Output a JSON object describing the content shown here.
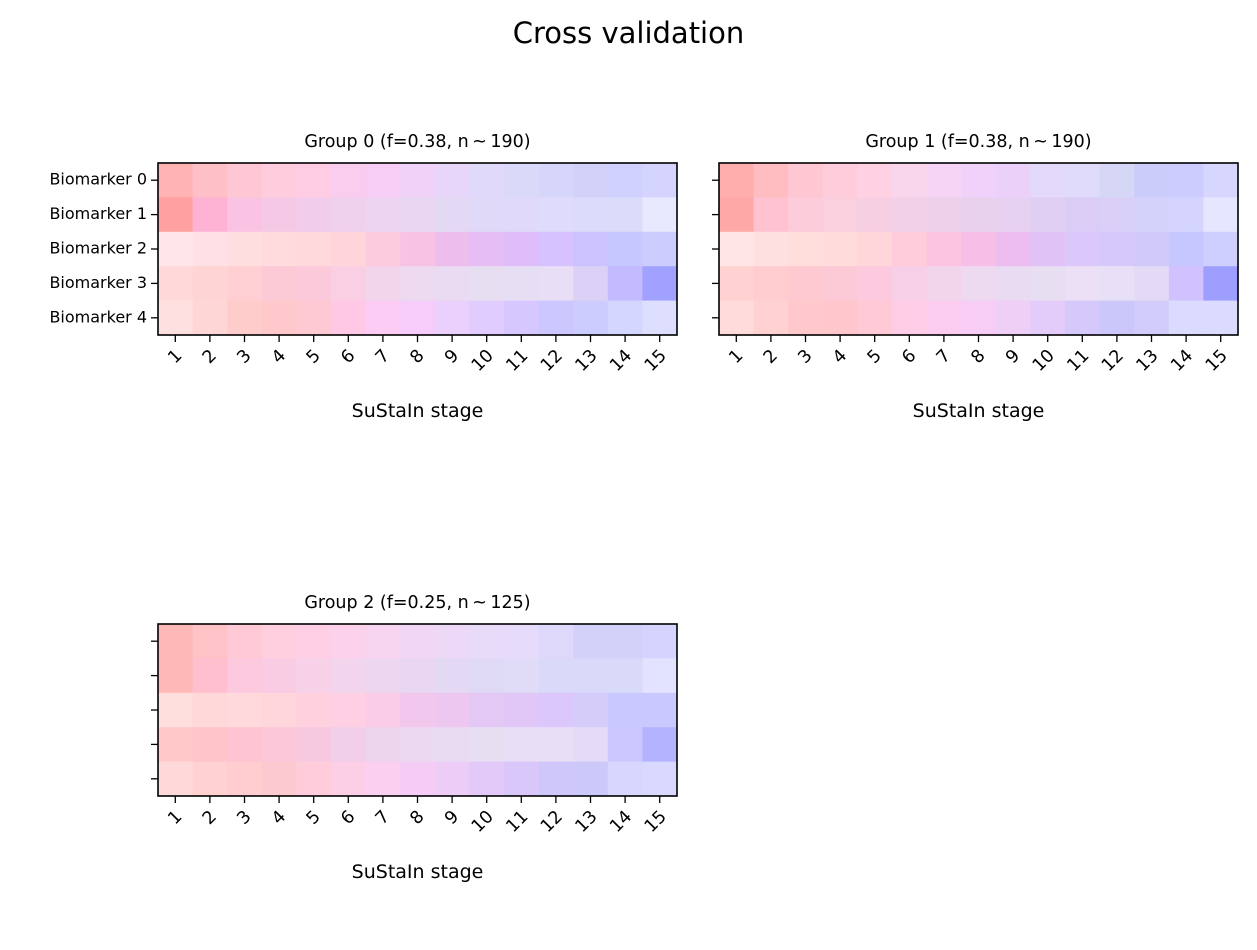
{
  "figure": {
    "title": "Cross validation"
  },
  "chart_data": [
    {
      "type": "heatmap",
      "title": "Group 0 (f=0.38, n ~ 190)",
      "xlabel": "SuStaIn stage",
      "ylabel": "",
      "x_ticks": [
        "1",
        "2",
        "3",
        "4",
        "5",
        "6",
        "7",
        "8",
        "9",
        "10",
        "11",
        "12",
        "13",
        "14",
        "15"
      ],
      "y_ticks": [
        "Biomarker 0",
        "Biomarker 1",
        "Biomarker 2",
        "Biomarker 3",
        "Biomarker 4"
      ],
      "show_y_labels": true,
      "rows": [
        [
          [
            1.0,
            0.7,
            0.7
          ],
          [
            1.0,
            0.75,
            0.78
          ],
          [
            1.0,
            0.78,
            0.83
          ],
          [
            1.0,
            0.8,
            0.87
          ],
          [
            1.0,
            0.8,
            0.89
          ],
          [
            0.98,
            0.8,
            0.93
          ],
          [
            0.97,
            0.8,
            0.96
          ],
          [
            0.94,
            0.82,
            0.97
          ],
          [
            0.91,
            0.84,
            0.98
          ],
          [
            0.88,
            0.85,
            0.98
          ],
          [
            0.86,
            0.85,
            0.98
          ],
          [
            0.84,
            0.84,
            0.98
          ],
          [
            0.82,
            0.82,
            0.98
          ],
          [
            0.82,
            0.82,
            1.0
          ],
          [
            0.83,
            0.83,
            1.0
          ]
        ],
        [
          [
            1.0,
            0.63,
            0.63
          ],
          [
            1.0,
            0.7,
            0.83
          ],
          [
            0.98,
            0.76,
            0.89
          ],
          [
            0.96,
            0.79,
            0.9
          ],
          [
            0.95,
            0.8,
            0.92
          ],
          [
            0.94,
            0.82,
            0.93
          ],
          [
            0.93,
            0.83,
            0.94
          ],
          [
            0.91,
            0.84,
            0.95
          ],
          [
            0.89,
            0.85,
            0.96
          ],
          [
            0.88,
            0.85,
            0.97
          ],
          [
            0.88,
            0.85,
            0.98
          ],
          [
            0.87,
            0.86,
            0.99
          ],
          [
            0.86,
            0.86,
            0.99
          ],
          [
            0.86,
            0.86,
            0.98
          ],
          [
            0.91,
            0.91,
            1.0
          ]
        ],
        [
          [
            1.0,
            0.9,
            0.91
          ],
          [
            1.0,
            0.88,
            0.9
          ],
          [
            1.0,
            0.87,
            0.88
          ],
          [
            1.0,
            0.86,
            0.87
          ],
          [
            1.0,
            0.85,
            0.86
          ],
          [
            1.0,
            0.83,
            0.86
          ],
          [
            0.99,
            0.8,
            0.87
          ],
          [
            0.97,
            0.76,
            0.89
          ],
          [
            0.93,
            0.74,
            0.93
          ],
          [
            0.9,
            0.74,
            0.96
          ],
          [
            0.87,
            0.74,
            0.98
          ],
          [
            0.84,
            0.76,
            1.0
          ],
          [
            0.8,
            0.76,
            1.0
          ],
          [
            0.78,
            0.78,
            1.0
          ],
          [
            0.8,
            0.8,
            1.0
          ]
        ],
        [
          [
            1.0,
            0.85,
            0.85
          ],
          [
            1.0,
            0.83,
            0.83
          ],
          [
            1.0,
            0.81,
            0.83
          ],
          [
            0.99,
            0.79,
            0.84
          ],
          [
            0.99,
            0.79,
            0.86
          ],
          [
            0.98,
            0.81,
            0.89
          ],
          [
            0.95,
            0.83,
            0.92
          ],
          [
            0.93,
            0.85,
            0.94
          ],
          [
            0.92,
            0.86,
            0.95
          ],
          [
            0.91,
            0.87,
            0.95
          ],
          [
            0.9,
            0.87,
            0.95
          ],
          [
            0.91,
            0.87,
            0.96
          ],
          [
            0.86,
            0.82,
            0.97
          ],
          [
            0.77,
            0.73,
            1.0
          ],
          [
            0.63,
            0.63,
            1.0
          ]
        ],
        [
          [
            1.0,
            0.88,
            0.88
          ],
          [
            1.0,
            0.84,
            0.84
          ],
          [
            1.0,
            0.8,
            0.8
          ],
          [
            1.0,
            0.79,
            0.8
          ],
          [
            1.0,
            0.79,
            0.83
          ],
          [
            1.0,
            0.79,
            0.9
          ],
          [
            0.99,
            0.8,
            0.96
          ],
          [
            0.96,
            0.8,
            0.98
          ],
          [
            0.92,
            0.81,
            0.99
          ],
          [
            0.88,
            0.8,
            1.0
          ],
          [
            0.84,
            0.78,
            1.0
          ],
          [
            0.8,
            0.78,
            1.0
          ],
          [
            0.8,
            0.8,
            1.0
          ],
          [
            0.83,
            0.84,
            1.0
          ],
          [
            0.87,
            0.87,
            1.0
          ]
        ]
      ]
    },
    {
      "type": "heatmap",
      "title": "Group 1 (f=0.38, n ~ 190)",
      "xlabel": "SuStaIn stage",
      "ylabel": "",
      "x_ticks": [
        "1",
        "2",
        "3",
        "4",
        "5",
        "6",
        "7",
        "8",
        "9",
        "10",
        "11",
        "12",
        "13",
        "14",
        "15"
      ],
      "y_ticks": [
        "",
        "",
        "",
        "",
        ""
      ],
      "show_y_labels": false,
      "rows": [
        [
          [
            1.0,
            0.68,
            0.68
          ],
          [
            1.0,
            0.74,
            0.76
          ],
          [
            1.0,
            0.78,
            0.82
          ],
          [
            1.0,
            0.8,
            0.86
          ],
          [
            1.0,
            0.82,
            0.89
          ],
          [
            0.98,
            0.84,
            0.93
          ],
          [
            0.96,
            0.83,
            0.96
          ],
          [
            0.94,
            0.82,
            0.98
          ],
          [
            0.92,
            0.82,
            0.98
          ],
          [
            0.89,
            0.85,
            0.98
          ],
          [
            0.88,
            0.86,
            0.98
          ],
          [
            0.84,
            0.84,
            0.97
          ],
          [
            0.8,
            0.8,
            0.98
          ],
          [
            0.8,
            0.8,
            1.0
          ],
          [
            0.84,
            0.84,
            1.0
          ]
        ],
        [
          [
            1.0,
            0.66,
            0.66
          ],
          [
            1.0,
            0.76,
            0.82
          ],
          [
            0.99,
            0.8,
            0.86
          ],
          [
            0.98,
            0.81,
            0.87
          ],
          [
            0.97,
            0.81,
            0.89
          ],
          [
            0.95,
            0.82,
            0.91
          ],
          [
            0.93,
            0.82,
            0.92
          ],
          [
            0.91,
            0.82,
            0.93
          ],
          [
            0.9,
            0.82,
            0.94
          ],
          [
            0.88,
            0.81,
            0.95
          ],
          [
            0.86,
            0.8,
            0.96
          ],
          [
            0.85,
            0.81,
            0.97
          ],
          [
            0.83,
            0.82,
            0.98
          ],
          [
            0.83,
            0.83,
            1.0
          ],
          [
            0.9,
            0.9,
            1.0
          ]
        ],
        [
          [
            1.0,
            0.9,
            0.9
          ],
          [
            1.0,
            0.88,
            0.88
          ],
          [
            1.0,
            0.87,
            0.86
          ],
          [
            1.0,
            0.86,
            0.86
          ],
          [
            1.0,
            0.84,
            0.85
          ],
          [
            1.0,
            0.8,
            0.86
          ],
          [
            0.99,
            0.77,
            0.88
          ],
          [
            0.97,
            0.75,
            0.91
          ],
          [
            0.93,
            0.74,
            0.94
          ],
          [
            0.88,
            0.76,
            0.97
          ],
          [
            0.86,
            0.78,
            0.98
          ],
          [
            0.84,
            0.79,
            0.98
          ],
          [
            0.82,
            0.79,
            0.98
          ],
          [
            0.78,
            0.78,
            1.0
          ],
          [
            0.81,
            0.81,
            1.0
          ]
        ],
        [
          [
            1.0,
            0.82,
            0.82
          ],
          [
            1.0,
            0.8,
            0.81
          ],
          [
            1.0,
            0.79,
            0.82
          ],
          [
            0.99,
            0.79,
            0.84
          ],
          [
            0.99,
            0.79,
            0.87
          ],
          [
            0.97,
            0.81,
            0.9
          ],
          [
            0.95,
            0.83,
            0.92
          ],
          [
            0.93,
            0.85,
            0.94
          ],
          [
            0.91,
            0.86,
            0.95
          ],
          [
            0.91,
            0.87,
            0.95
          ],
          [
            0.92,
            0.88,
            0.96
          ],
          [
            0.91,
            0.88,
            0.97
          ],
          [
            0.89,
            0.86,
            0.96
          ],
          [
            0.82,
            0.76,
            1.0
          ],
          [
            0.62,
            0.62,
            1.0
          ]
        ],
        [
          [
            1.0,
            0.86,
            0.86
          ],
          [
            1.0,
            0.82,
            0.82
          ],
          [
            1.0,
            0.79,
            0.8
          ],
          [
            1.0,
            0.78,
            0.8
          ],
          [
            1.0,
            0.79,
            0.84
          ],
          [
            1.0,
            0.8,
            0.9
          ],
          [
            0.99,
            0.8,
            0.94
          ],
          [
            0.97,
            0.8,
            0.96
          ],
          [
            0.94,
            0.81,
            0.97
          ],
          [
            0.89,
            0.8,
            0.98
          ],
          [
            0.83,
            0.79,
            0.98
          ],
          [
            0.8,
            0.78,
            0.98
          ],
          [
            0.82,
            0.8,
            0.98
          ],
          [
            0.86,
            0.86,
            1.0
          ],
          [
            0.86,
            0.86,
            1.0
          ]
        ]
      ]
    },
    {
      "type": "heatmap",
      "title": "Group 2 (f=0.25, n ~ 125)",
      "xlabel": "SuStaIn stage",
      "ylabel": "",
      "x_ticks": [
        "1",
        "2",
        "3",
        "4",
        "5",
        "6",
        "7",
        "8",
        "9",
        "10",
        "11",
        "12",
        "13",
        "14",
        "15"
      ],
      "y_ticks": [
        "",
        "",
        "",
        "",
        ""
      ],
      "show_y_labels": false,
      "rows": [
        [
          [
            1.0,
            0.72,
            0.72
          ],
          [
            1.0,
            0.76,
            0.78
          ],
          [
            1.0,
            0.79,
            0.84
          ],
          [
            1.0,
            0.81,
            0.88
          ],
          [
            1.0,
            0.81,
            0.9
          ],
          [
            0.99,
            0.82,
            0.92
          ],
          [
            0.97,
            0.83,
            0.94
          ],
          [
            0.95,
            0.84,
            0.96
          ],
          [
            0.93,
            0.85,
            0.97
          ],
          [
            0.91,
            0.86,
            0.98
          ],
          [
            0.9,
            0.86,
            0.98
          ],
          [
            0.87,
            0.85,
            0.98
          ],
          [
            0.82,
            0.82,
            0.98
          ],
          [
            0.82,
            0.82,
            0.98
          ],
          [
            0.83,
            0.83,
            1.0
          ]
        ],
        [
          [
            1.0,
            0.72,
            0.72
          ],
          [
            1.0,
            0.75,
            0.81
          ],
          [
            0.99,
            0.79,
            0.87
          ],
          [
            0.98,
            0.8,
            0.89
          ],
          [
            0.97,
            0.82,
            0.91
          ],
          [
            0.95,
            0.83,
            0.93
          ],
          [
            0.93,
            0.84,
            0.94
          ],
          [
            0.91,
            0.84,
            0.95
          ],
          [
            0.89,
            0.85,
            0.96
          ],
          [
            0.88,
            0.85,
            0.96
          ],
          [
            0.88,
            0.86,
            0.97
          ],
          [
            0.86,
            0.85,
            0.98
          ],
          [
            0.85,
            0.85,
            0.98
          ],
          [
            0.85,
            0.85,
            0.98
          ],
          [
            0.89,
            0.89,
            1.0
          ]
        ],
        [
          [
            1.0,
            0.87,
            0.87
          ],
          [
            1.0,
            0.85,
            0.85
          ],
          [
            1.0,
            0.85,
            0.86
          ],
          [
            1.0,
            0.84,
            0.86
          ],
          [
            1.0,
            0.82,
            0.87
          ],
          [
            1.0,
            0.81,
            0.89
          ],
          [
            0.98,
            0.8,
            0.91
          ],
          [
            0.95,
            0.78,
            0.93
          ],
          [
            0.93,
            0.78,
            0.94
          ],
          [
            0.89,
            0.78,
            0.96
          ],
          [
            0.88,
            0.78,
            0.97
          ],
          [
            0.86,
            0.78,
            0.98
          ],
          [
            0.84,
            0.8,
            0.98
          ],
          [
            0.79,
            0.79,
            1.0
          ],
          [
            0.79,
            0.79,
            1.0
          ]
        ],
        [
          [
            1.0,
            0.79,
            0.79
          ],
          [
            1.0,
            0.77,
            0.79
          ],
          [
            1.0,
            0.77,
            0.82
          ],
          [
            0.99,
            0.78,
            0.85
          ],
          [
            0.97,
            0.79,
            0.88
          ],
          [
            0.95,
            0.81,
            0.91
          ],
          [
            0.93,
            0.83,
            0.93
          ],
          [
            0.92,
            0.85,
            0.95
          ],
          [
            0.91,
            0.86,
            0.95
          ],
          [
            0.91,
            0.87,
            0.95
          ],
          [
            0.91,
            0.87,
            0.96
          ],
          [
            0.91,
            0.87,
            0.96
          ],
          [
            0.89,
            0.86,
            0.97
          ],
          [
            0.8,
            0.78,
            1.0
          ],
          [
            0.7,
            0.7,
            1.0
          ]
        ],
        [
          [
            1.0,
            0.85,
            0.85
          ],
          [
            1.0,
            0.82,
            0.82
          ],
          [
            1.0,
            0.8,
            0.81
          ],
          [
            0.99,
            0.79,
            0.82
          ],
          [
            1.0,
            0.8,
            0.86
          ],
          [
            0.99,
            0.81,
            0.9
          ],
          [
            0.98,
            0.81,
            0.94
          ],
          [
            0.96,
            0.8,
            0.96
          ],
          [
            0.93,
            0.8,
            0.97
          ],
          [
            0.89,
            0.79,
            0.98
          ],
          [
            0.85,
            0.78,
            0.98
          ],
          [
            0.81,
            0.78,
            0.98
          ],
          [
            0.8,
            0.79,
            0.98
          ],
          [
            0.84,
            0.84,
            1.0
          ],
          [
            0.85,
            0.85,
            1.0
          ]
        ]
      ]
    }
  ]
}
